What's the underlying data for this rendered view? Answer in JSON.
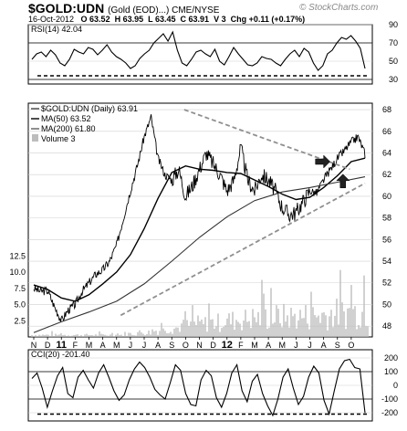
{
  "header": {
    "symbol": "$GOLD:UDN",
    "name": "(Gold (EOD)...) CME/NYSE",
    "watermark": "© StockCharts.com",
    "date": "16-Oct-2012",
    "open": "O 63.52",
    "high": "H 63.95",
    "low": "L 63.45",
    "close": "C 63.91",
    "volume": "V 3",
    "change": "Chg +0.11 (+0.17%)"
  },
  "colors": {
    "line": "#000000",
    "grid": "#d0d0d0",
    "trend": "#909090",
    "ma50": "#000000",
    "ma200": "#333333",
    "volume": "#bdbdbd"
  },
  "chart_data": [
    {
      "type": "line",
      "panel": "rsi",
      "legend": "RSI(14) 42.04",
      "ylim": [
        25,
        90
      ],
      "yticks": [
        "90",
        "70",
        "50",
        "30"
      ],
      "reference_lines": [
        70,
        30
      ],
      "support_level": 34,
      "series": [
        {
          "values": [
            52,
            58,
            60,
            55,
            62,
            57,
            48,
            45,
            52,
            63,
            60,
            58,
            65,
            63,
            57,
            62,
            68,
            60,
            55,
            52,
            48,
            42,
            45,
            53,
            58,
            62,
            70,
            75,
            80,
            72,
            82,
            62,
            48,
            45,
            52,
            60,
            62,
            58,
            55,
            63,
            50,
            46,
            55,
            65,
            58,
            52,
            46,
            45,
            48,
            55,
            53,
            52,
            48,
            45,
            52,
            58,
            62,
            55,
            64,
            60,
            48,
            40,
            45,
            58,
            62,
            70,
            76,
            74,
            78,
            72,
            64,
            42
          ]
        }
      ]
    },
    {
      "type": "line",
      "panel": "price",
      "legend_price": "$GOLD:UDN (Daily) 63.91",
      "legend_ma50": "MA(50) 63.52",
      "legend_ma200": "MA(200) 61.80",
      "legend_volume": "Volume 3",
      "ylim": [
        47,
        68.6
      ],
      "yticks": [
        "68",
        "66",
        "64",
        "62",
        "60",
        "58",
        "56",
        "54",
        "52",
        "50",
        "48"
      ],
      "volume_ticks": [
        "12.5",
        "10.0",
        "7.5",
        "5.0",
        "2.5"
      ],
      "volume_max": 13,
      "x_labels": [
        "N",
        "D",
        "11",
        "F",
        "M",
        "A",
        "M",
        "J",
        "J",
        "A",
        "S",
        "O",
        "N",
        "D",
        "12",
        "F",
        "M",
        "A",
        "M",
        "J",
        "J",
        "A",
        "S",
        "O"
      ],
      "trendlines": [
        {
          "from": [
            6.3,
            49.0
          ],
          "to": [
            24,
            61.2
          ]
        },
        {
          "from": [
            10.9,
            68.0
          ],
          "to": [
            22.9,
            62.5
          ]
        }
      ],
      "arrows": [
        {
          "kind": "right",
          "x": 21.2,
          "y": 63.2
        },
        {
          "kind": "up",
          "x": 22.4,
          "y": 61.7
        }
      ],
      "series": [
        {
          "name": "price",
          "x": [
            0,
            0.5,
            1,
            1.5,
            2,
            2.5,
            3,
            3.5,
            4,
            4.5,
            5,
            5.5,
            6,
            6.5,
            7,
            7.5,
            8,
            8.5,
            9,
            9.5,
            10,
            10.5,
            11,
            11.5,
            12,
            12.5,
            13,
            13.5,
            14,
            14.5,
            15,
            15.5,
            16,
            16.5,
            17,
            17.5,
            18,
            18.5,
            19,
            19.5,
            20,
            20.5,
            21,
            21.5,
            22,
            22.5,
            23,
            23.5,
            24
          ],
          "values": [
            51.5,
            51.2,
            51.3,
            49.8,
            48.5,
            49.5,
            50.0,
            51.2,
            52.0,
            52.8,
            53.2,
            54.0,
            55.5,
            58.0,
            60.5,
            62.8,
            65.5,
            67.3,
            63.5,
            62.0,
            61.5,
            62.5,
            60.0,
            61.0,
            62.5,
            64.0,
            63.0,
            62.0,
            60.5,
            61.5,
            64.5,
            61.5,
            60.5,
            62.0,
            61.5,
            60.5,
            59.0,
            58.3,
            58.5,
            59.5,
            60.5,
            60.3,
            61.5,
            62.5,
            63.5,
            64.2,
            65.0,
            65.5,
            63.9
          ]
        },
        {
          "name": "MA(50)",
          "x": [
            0,
            1,
            2,
            3,
            4,
            5,
            6,
            7,
            8,
            9,
            10,
            11,
            12,
            13,
            14,
            15,
            16,
            17,
            18,
            19,
            20,
            21,
            22,
            23,
            24
          ],
          "values": [
            51.8,
            51.4,
            50.6,
            50.3,
            50.9,
            51.9,
            53.0,
            54.6,
            57.0,
            59.8,
            62.2,
            62.8,
            62.5,
            62.4,
            62.2,
            62.1,
            61.5,
            60.9,
            60.2,
            59.7,
            59.9,
            60.8,
            61.9,
            63.2,
            63.52
          ]
        },
        {
          "name": "MA(200)",
          "x": [
            0,
            2,
            4,
            6,
            8,
            10,
            12,
            14,
            16,
            18,
            20,
            22,
            24
          ],
          "values": [
            47.4,
            48.4,
            49.3,
            50.3,
            51.9,
            54.0,
            56.2,
            58.1,
            59.6,
            60.4,
            60.8,
            61.3,
            61.8
          ]
        }
      ],
      "volume_profile": [
        0.3,
        0.3,
        0.3,
        0.3,
        0.3,
        0.3,
        0.3,
        0.5,
        0.7,
        1.0,
        1.4,
        1.7,
        2.0,
        2.2,
        2.5,
        2.7,
        2.9,
        3.0,
        3.1,
        3.1,
        3.2,
        3.4,
        3.6,
        3.8,
        3.9
      ]
    },
    {
      "type": "line",
      "panel": "cci",
      "legend": "CCI(20) -201.40",
      "ylim": [
        -260,
        260
      ],
      "yticks": [
        "200",
        "100",
        "0",
        "-100",
        "-200"
      ],
      "reference_lines": [
        100,
        -100
      ],
      "support_level": -210,
      "series": [
        {
          "values": [
            50,
            90,
            -20,
            -160,
            -40,
            70,
            130,
            -60,
            -90,
            60,
            110,
            40,
            -20,
            90,
            150,
            60,
            -40,
            -110,
            -70,
            40,
            120,
            170,
            130,
            60,
            -30,
            -70,
            -100,
            20,
            150,
            110,
            -60,
            -140,
            -150,
            40,
            110,
            70,
            -90,
            -160,
            -60,
            90,
            150,
            -40,
            -120,
            30,
            80,
            -60,
            -150,
            -220,
            -100,
            60,
            120,
            -20,
            -140,
            -80,
            60,
            140,
            90,
            -110,
            -210,
            -40,
            120,
            180,
            190,
            130,
            120,
            -201
          ]
        }
      ]
    }
  ]
}
